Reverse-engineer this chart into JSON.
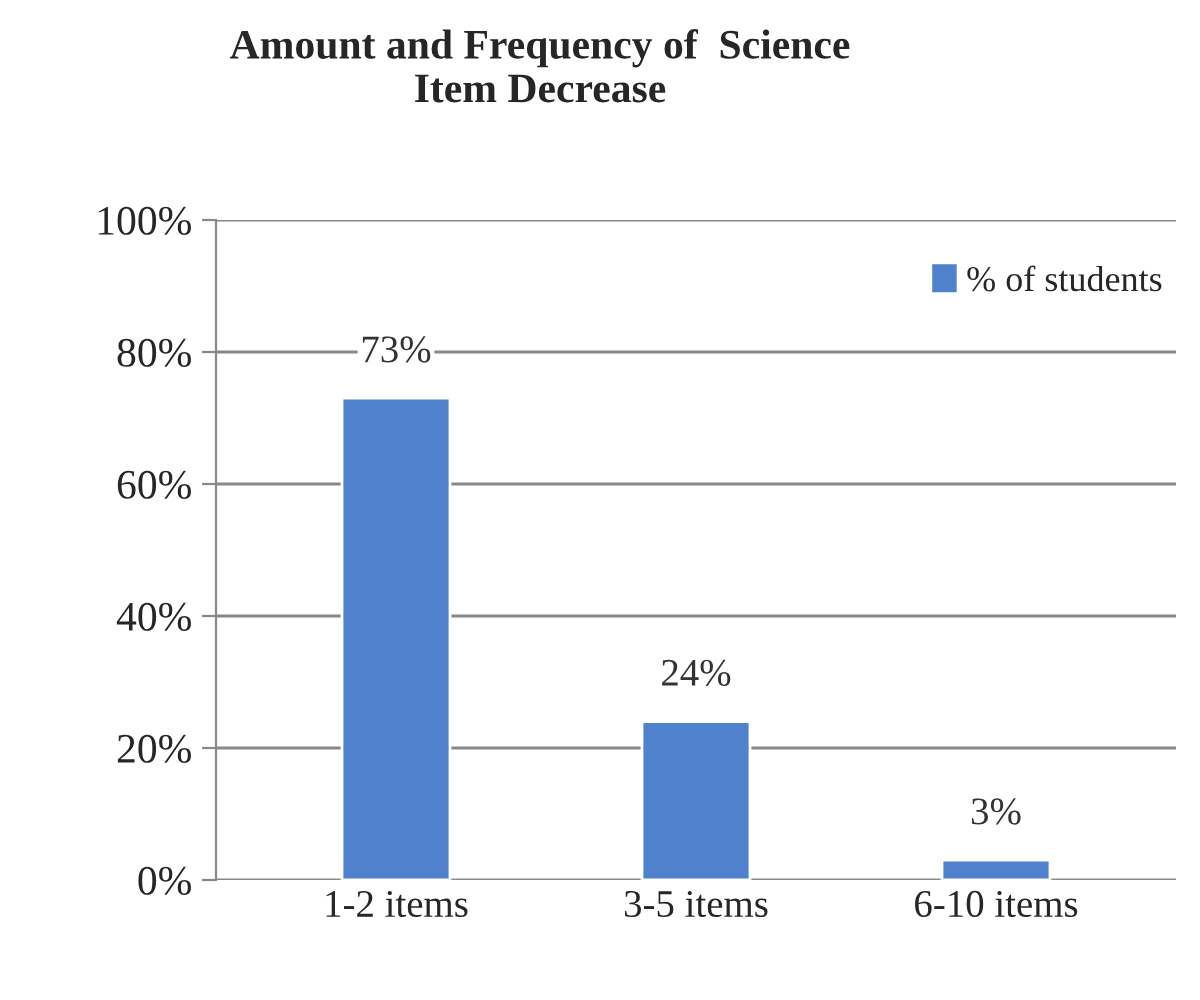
{
  "chart_data": {
    "type": "bar",
    "title": "Amount and Frequency of  Science\nItem Decrease",
    "categories": [
      "1-2 items",
      "3-5 items",
      "6-10 items"
    ],
    "series": [
      {
        "name": "% of students",
        "color": "#4f81cd",
        "values": [
          73,
          24,
          3
        ],
        "value_labels": [
          "73%",
          "24%",
          "3%"
        ]
      }
    ],
    "ylim": [
      0,
      100
    ],
    "yticks": [
      {
        "value": 0,
        "label": "0%"
      },
      {
        "value": 20,
        "label": "20%"
      },
      {
        "value": 40,
        "label": "40%"
      },
      {
        "value": 60,
        "label": "60%"
      },
      {
        "value": 80,
        "label": "80%"
      },
      {
        "value": 100,
        "label": "100%"
      }
    ],
    "grid": "y",
    "legend": "top right"
  }
}
